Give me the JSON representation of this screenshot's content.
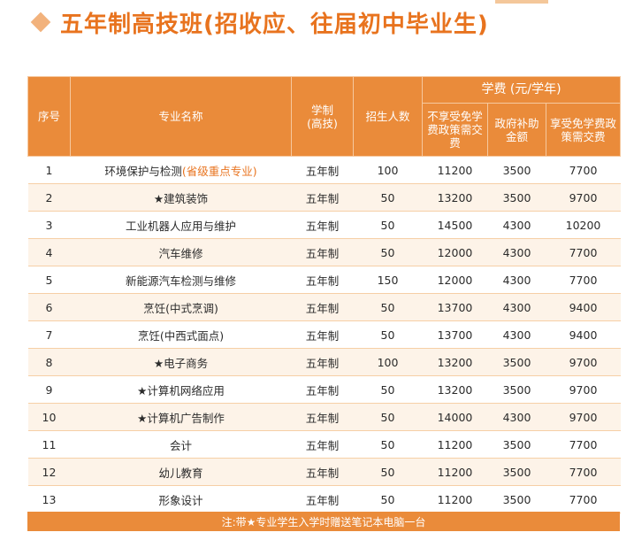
{
  "title": "五年制高技班(招收应、往届初中毕业生)",
  "headers": {
    "index": "序号",
    "major": "专业名称",
    "system": "学制",
    "system_sub": "(高技)",
    "enrollment": "招生人数",
    "tuition_group": "学费 (元/学年)",
    "tuition_no_policy": "不享受免学费政策需交费",
    "gov_subsidy": "政府补助金额",
    "tuition_with_policy": "享受免学费政策需交费"
  },
  "rows": [
    {
      "index": "1",
      "major": "环境保护与检测",
      "tag": "(省级重点专业)",
      "system": "五年制",
      "enrollment": "100",
      "fee_no_policy": "11200",
      "subsidy": "3500",
      "fee_with_policy": "7700"
    },
    {
      "index": "2",
      "major": "★建筑装饰",
      "tag": "",
      "system": "五年制",
      "enrollment": "50",
      "fee_no_policy": "13200",
      "subsidy": "3500",
      "fee_with_policy": "9700"
    },
    {
      "index": "3",
      "major": "工业机器人应用与维护",
      "tag": "",
      "system": "五年制",
      "enrollment": "50",
      "fee_no_policy": "14500",
      "subsidy": "4300",
      "fee_with_policy": "10200"
    },
    {
      "index": "4",
      "major": "汽车维修",
      "tag": "",
      "system": "五年制",
      "enrollment": "50",
      "fee_no_policy": "12000",
      "subsidy": "4300",
      "fee_with_policy": "7700"
    },
    {
      "index": "5",
      "major": "新能源汽车检测与维修",
      "tag": "",
      "system": "五年制",
      "enrollment": "150",
      "fee_no_policy": "12000",
      "subsidy": "4300",
      "fee_with_policy": "7700"
    },
    {
      "index": "6",
      "major": "烹饪(中式烹调)",
      "tag": "",
      "system": "五年制",
      "enrollment": "50",
      "fee_no_policy": "13700",
      "subsidy": "4300",
      "fee_with_policy": "9400"
    },
    {
      "index": "7",
      "major": "烹饪(中西式面点)",
      "tag": "",
      "system": "五年制",
      "enrollment": "50",
      "fee_no_policy": "13700",
      "subsidy": "4300",
      "fee_with_policy": "9400"
    },
    {
      "index": "8",
      "major": "★电子商务",
      "tag": "",
      "system": "五年制",
      "enrollment": "100",
      "fee_no_policy": "13200",
      "subsidy": "3500",
      "fee_with_policy": "9700"
    },
    {
      "index": "9",
      "major": "★计算机网络应用",
      "tag": "",
      "system": "五年制",
      "enrollment": "50",
      "fee_no_policy": "13200",
      "subsidy": "3500",
      "fee_with_policy": "9700"
    },
    {
      "index": "10",
      "major": "★计算机广告制作",
      "tag": "",
      "system": "五年制",
      "enrollment": "50",
      "fee_no_policy": "14000",
      "subsidy": "4300",
      "fee_with_policy": "9700"
    },
    {
      "index": "11",
      "major": "会计",
      "tag": "",
      "system": "五年制",
      "enrollment": "50",
      "fee_no_policy": "11200",
      "subsidy": "3500",
      "fee_with_policy": "7700"
    },
    {
      "index": "12",
      "major": "幼儿教育",
      "tag": "",
      "system": "五年制",
      "enrollment": "50",
      "fee_no_policy": "11200",
      "subsidy": "3500",
      "fee_with_policy": "7700"
    },
    {
      "index": "13",
      "major": "形象设计",
      "tag": "",
      "system": "五年制",
      "enrollment": "50",
      "fee_no_policy": "11200",
      "subsidy": "3500",
      "fee_with_policy": "7700"
    }
  ],
  "note": "注:带★专业学生入学时赠送笔记本电脑一台",
  "colors": {
    "accent": "#ea8b3a",
    "title": "#e8731e",
    "stripe": "#fdf3e8"
  }
}
